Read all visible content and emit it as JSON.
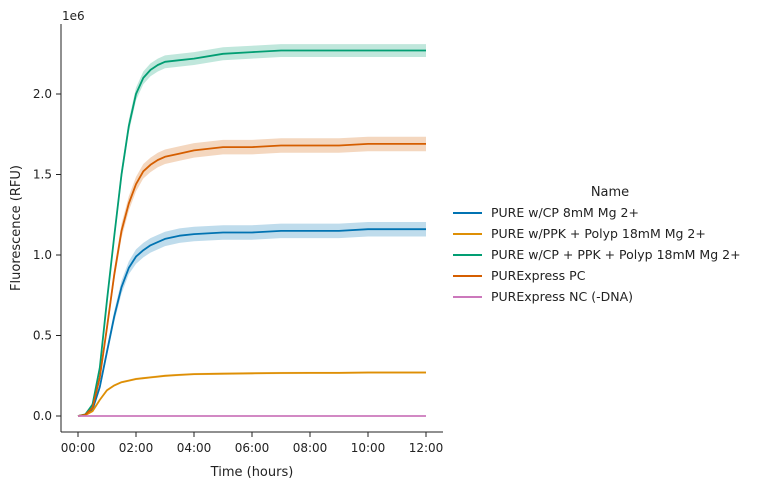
{
  "chart_data": {
    "type": "line",
    "xlabel": "Time (hours)",
    "ylabel": "Fluorescence (RFU)",
    "y_offset_label": "1e6",
    "xlim": [
      0,
      12.5
    ],
    "ylim": [
      -0.12,
      2.42
    ],
    "x_ticks": [
      0,
      2,
      4,
      6,
      8,
      10,
      12
    ],
    "x_tick_labels": [
      "00:00",
      "02:00",
      "04:00",
      "06:00",
      "08:00",
      "10:00",
      "12:00"
    ],
    "y_ticks": [
      0.0,
      0.5,
      1.0,
      1.5,
      2.0
    ],
    "y_tick_labels": [
      "0.0",
      "0.5",
      "1.0",
      "1.5",
      "2.0"
    ],
    "legend": {
      "title": "Name",
      "placement": "center-right, outside plot"
    },
    "grid": false,
    "x": [
      0,
      0.25,
      0.5,
      0.75,
      1.0,
      1.25,
      1.5,
      1.75,
      2.0,
      2.25,
      2.5,
      2.75,
      3.0,
      3.5,
      4.0,
      5.0,
      6.0,
      7.0,
      8.0,
      9.0,
      10.0,
      11.0,
      12.0
    ],
    "series": [
      {
        "name": "PURE w/CP 8mM Mg 2+",
        "color": "#0173b2",
        "values": [
          0,
          0.005,
          0.04,
          0.18,
          0.4,
          0.62,
          0.8,
          0.92,
          0.99,
          1.03,
          1.06,
          1.08,
          1.1,
          1.12,
          1.13,
          1.14,
          1.14,
          1.15,
          1.15,
          1.15,
          1.16,
          1.16,
          1.16
        ],
        "band": [
          0,
          0.003,
          0.01,
          0.02,
          0.03,
          0.035,
          0.04,
          0.04,
          0.045,
          0.045,
          0.045,
          0.045,
          0.045,
          0.045,
          0.045,
          0.045,
          0.045,
          0.045,
          0.045,
          0.045,
          0.045,
          0.045,
          0.045
        ]
      },
      {
        "name": "PURE w/PPK + Polyp 18mM Mg 2+",
        "color": "#de8f05",
        "values": [
          0,
          0.005,
          0.03,
          0.1,
          0.16,
          0.19,
          0.21,
          0.22,
          0.23,
          0.235,
          0.24,
          0.245,
          0.25,
          0.255,
          0.26,
          0.263,
          0.265,
          0.267,
          0.268,
          0.268,
          0.27,
          0.27,
          0.27
        ],
        "band": [
          0,
          0.002,
          0.005,
          0.006,
          0.007,
          0.007,
          0.007,
          0.007,
          0.007,
          0.007,
          0.007,
          0.007,
          0.007,
          0.007,
          0.007,
          0.007,
          0.007,
          0.007,
          0.007,
          0.007,
          0.007,
          0.007,
          0.007
        ]
      },
      {
        "name": "PURE w/CP + PPK + Polyp 18mM Mg 2+",
        "color": "#029e73",
        "values": [
          0,
          0.01,
          0.07,
          0.3,
          0.72,
          1.12,
          1.5,
          1.8,
          2.0,
          2.1,
          2.15,
          2.18,
          2.2,
          2.21,
          2.22,
          2.25,
          2.26,
          2.27,
          2.27,
          2.27,
          2.27,
          2.27,
          2.27
        ],
        "band": [
          0,
          0.004,
          0.015,
          0.025,
          0.03,
          0.035,
          0.04,
          0.04,
          0.04,
          0.04,
          0.04,
          0.04,
          0.04,
          0.04,
          0.04,
          0.04,
          0.04,
          0.04,
          0.04,
          0.04,
          0.04,
          0.04,
          0.04
        ]
      },
      {
        "name": "PURExpress PC",
        "color": "#d55e00",
        "values": [
          0,
          0.008,
          0.05,
          0.24,
          0.55,
          0.88,
          1.15,
          1.32,
          1.44,
          1.52,
          1.56,
          1.59,
          1.61,
          1.63,
          1.65,
          1.67,
          1.67,
          1.68,
          1.68,
          1.68,
          1.69,
          1.69,
          1.69
        ],
        "band": [
          0,
          0.003,
          0.012,
          0.025,
          0.035,
          0.04,
          0.045,
          0.045,
          0.045,
          0.045,
          0.045,
          0.045,
          0.045,
          0.045,
          0.045,
          0.045,
          0.045,
          0.045,
          0.045,
          0.045,
          0.045,
          0.045,
          0.045
        ]
      },
      {
        "name": "PURExpress NC (-DNA)",
        "color": "#cc78bc",
        "values": [
          0,
          0,
          0,
          0,
          0,
          0,
          0,
          0,
          0,
          0,
          0,
          0,
          0,
          0,
          0,
          0,
          0,
          0,
          0,
          0,
          0,
          0,
          0
        ],
        "band": [
          0,
          0,
          0,
          0,
          0,
          0,
          0,
          0,
          0,
          0,
          0,
          0,
          0,
          0,
          0,
          0,
          0,
          0,
          0,
          0,
          0,
          0,
          0
        ]
      }
    ]
  }
}
